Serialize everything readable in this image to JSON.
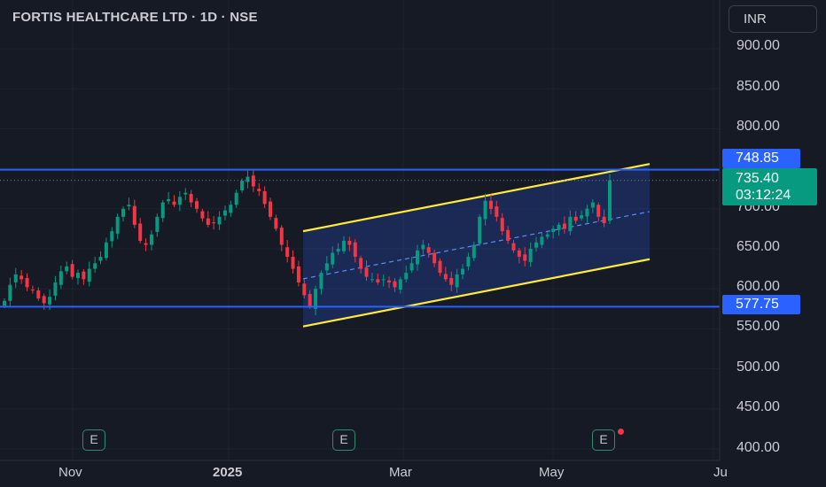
{
  "header": {
    "title": "FORTIS HEALTHCARE LTD · 1D · NSE",
    "currency_label": "INR"
  },
  "price_axis": {
    "labels": [
      "900.00",
      "850.00",
      "800.00",
      "700.00",
      "650.00",
      "600.00",
      "550.00",
      "500.00",
      "450.00",
      "400.00"
    ]
  },
  "time_axis": {
    "labels": [
      "Nov",
      "2025",
      "Mar",
      "May",
      "Ju"
    ]
  },
  "price_tags": {
    "upper_level": "748.85",
    "lower_level": "577.75",
    "last_price": "735.40",
    "countdown": "03:12:24"
  },
  "earnings_markers": [
    "E",
    "E",
    "E"
  ],
  "colors": {
    "up": "#089981",
    "down": "#f23645",
    "level_line": "#2962ff",
    "channel": "#ffeb3b",
    "background": "#161a25"
  },
  "chart_data": {
    "type": "candlestick",
    "title": "FORTIS HEALTHCARE LTD · 1D · NSE",
    "ylim": [
      400,
      925
    ],
    "y_ticks": [
      400,
      450,
      500,
      550,
      600,
      650,
      700,
      750,
      800,
      850,
      900
    ],
    "x_ticks": [
      "Nov",
      "2025",
      "Mar",
      "May",
      "Ju"
    ],
    "close_series": [
      585,
      605,
      618,
      612,
      602,
      598,
      588,
      582,
      590,
      608,
      622,
      628,
      615,
      620,
      612,
      625,
      632,
      640,
      658,
      672,
      690,
      700,
      705,
      680,
      660,
      655,
      668,
      690,
      708,
      712,
      705,
      715,
      720,
      708,
      700,
      688,
      680,
      682,
      690,
      698,
      705,
      720,
      735,
      740,
      728,
      722,
      706,
      690,
      675,
      655,
      640,
      625,
      608,
      592,
      578,
      600,
      620,
      632,
      645,
      650,
      660,
      655,
      640,
      625,
      615,
      612,
      608,
      612,
      608,
      602,
      612,
      620,
      632,
      648,
      655,
      645,
      632,
      620,
      612,
      605,
      618,
      625,
      640,
      655,
      690,
      710,
      700,
      690,
      672,
      660,
      648,
      640,
      635,
      650,
      658,
      665,
      668,
      675,
      680,
      675,
      690,
      685,
      692,
      700,
      708,
      690,
      682,
      735.4
    ],
    "levels": [
      748.85,
      577.75
    ],
    "last_price": 735.4,
    "channel": {
      "upper": [
        [
          "mid-Jan",
          672
        ],
        [
          "end-May",
          756
        ]
      ],
      "lower": [
        [
          "mid-Jan",
          553
        ],
        [
          "end-May",
          637
        ]
      ]
    },
    "grid": true,
    "legend": "none"
  }
}
